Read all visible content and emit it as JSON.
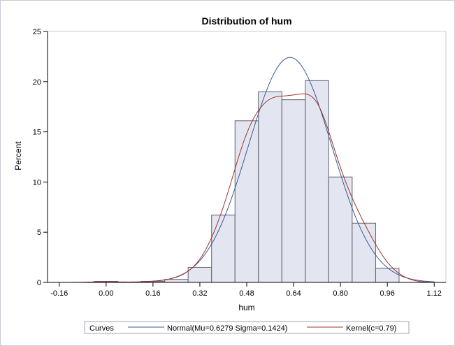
{
  "chart_data": {
    "type": "histogram",
    "title": "Distribution of hum",
    "xlabel": "hum",
    "ylabel": "Percent",
    "xlim": [
      -0.2,
      1.16
    ],
    "ylim": [
      0,
      25
    ],
    "xticks": [
      "-0.16",
      "0.00",
      "0.16",
      "0.32",
      "0.48",
      "0.64",
      "0.80",
      "0.96",
      "1.12"
    ],
    "yticks": [
      "0",
      "5",
      "10",
      "15",
      "20",
      "25"
    ],
    "bin_width": 0.08,
    "bins": [
      {
        "center": 0.0,
        "value": 0.1
      },
      {
        "center": 0.16,
        "value": 0.1
      },
      {
        "center": 0.24,
        "value": 0.3
      },
      {
        "center": 0.32,
        "value": 1.5
      },
      {
        "center": 0.4,
        "value": 6.7
      },
      {
        "center": 0.48,
        "value": 16.1
      },
      {
        "center": 0.56,
        "value": 19.0
      },
      {
        "center": 0.64,
        "value": 18.2
      },
      {
        "center": 0.72,
        "value": 20.1
      },
      {
        "center": 0.8,
        "value": 10.5
      },
      {
        "center": 0.88,
        "value": 5.9
      },
      {
        "center": 0.96,
        "value": 1.4
      }
    ],
    "series": [
      {
        "name": "Normal(Mu=0.6279 Sigma=0.1424)",
        "kind": "normal",
        "mu": 0.6279,
        "sigma": 0.1424,
        "color": "#3b5998"
      },
      {
        "name": "Kernel(c=0.79)",
        "kind": "kernel",
        "c": 0.79,
        "color": "#a0332b"
      }
    ],
    "legend": {
      "title": "Curves",
      "placement": "bottom"
    },
    "colors": {
      "bar_fill": "#e3e6f0",
      "bar_stroke": "#5f6270"
    }
  }
}
